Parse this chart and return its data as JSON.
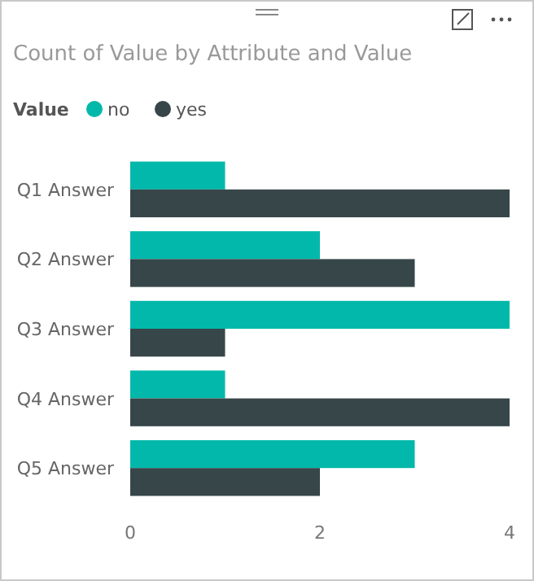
{
  "chart_data": {
    "type": "bar",
    "orientation": "horizontal",
    "title": "Count of Value by Attribute and Value",
    "legend_title": "Value",
    "categories": [
      "Q1 Answer",
      "Q2 Answer",
      "Q3 Answer",
      "Q4 Answer",
      "Q5 Answer"
    ],
    "series": [
      {
        "name": "no",
        "color": "#01b8aa",
        "values": [
          1,
          2,
          4,
          1,
          3
        ]
      },
      {
        "name": "yes",
        "color": "#374649",
        "values": [
          4,
          3,
          1,
          4,
          2
        ]
      }
    ],
    "xlim": [
      0,
      4
    ],
    "xticks": [
      0,
      2,
      4
    ],
    "grid": false,
    "legend": "top left"
  }
}
